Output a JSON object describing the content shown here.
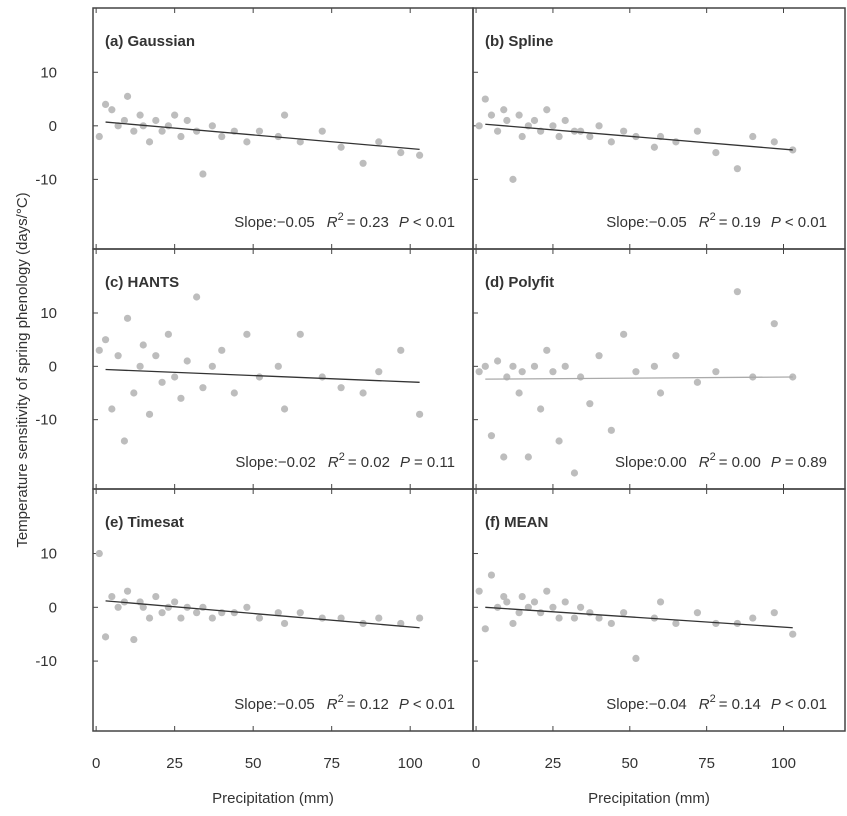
{
  "chart_data": [
    {
      "type": "scatter",
      "title": "(a) Gaussian",
      "ylabel": "Temperature sensitivity of spring phenology (days/°C)",
      "annotation": [
        "Slope:−0.05",
        "R",
        "2",
        "= 0.23",
        "P",
        "< 0.01"
      ],
      "x": [
        1,
        3,
        5,
        7,
        9,
        10,
        12,
        14,
        15,
        17,
        19,
        21,
        23,
        25,
        27,
        29,
        32,
        34,
        37,
        40,
        44,
        48,
        52,
        58,
        60,
        65,
        72,
        78,
        85,
        90,
        97,
        103
      ],
      "y": [
        -2,
        4,
        3,
        0,
        1,
        5.5,
        -1,
        2,
        0,
        -3,
        1,
        -1,
        0,
        2,
        -2,
        1,
        -1,
        -9,
        0,
        -2,
        -1,
        -3,
        -1,
        -2,
        2,
        -3,
        -1,
        -4,
        -7,
        -3,
        -5,
        -5.5
      ],
      "fit_x": [
        3,
        103
      ],
      "fit_y": [
        0.7,
        -4.4
      ],
      "color": "#bdbdbd",
      "fit_color": "#333333",
      "xlim": [
        -1,
        120
      ],
      "ylim": [
        -23,
        22
      ],
      "xticks": [
        0,
        25,
        50,
        75,
        100
      ],
      "yticks": [
        -10,
        0,
        10
      ]
    },
    {
      "type": "scatter",
      "title": "(b) Spline",
      "annotation": [
        "Slope:−0.05",
        "R",
        "2",
        "= 0.19",
        "P",
        "< 0.01"
      ],
      "x": [
        1,
        3,
        5,
        7,
        9,
        10,
        12,
        14,
        15,
        17,
        19,
        21,
        23,
        25,
        27,
        29,
        32,
        34,
        37,
        40,
        44,
        48,
        52,
        58,
        60,
        65,
        72,
        78,
        85,
        90,
        97,
        103
      ],
      "y": [
        0,
        5,
        2,
        -1,
        3,
        1,
        -10,
        2,
        -2,
        0,
        1,
        -1,
        3,
        0,
        -2,
        1,
        -1,
        -1,
        -2,
        0,
        -3,
        -1,
        -2,
        -4,
        -2,
        -3,
        -1,
        -5,
        -8,
        -2,
        -3,
        -4.5
      ],
      "fit_x": [
        3,
        103
      ],
      "fit_y": [
        0.3,
        -4.5
      ],
      "color": "#bdbdbd",
      "fit_color": "#333333",
      "xlim": [
        -1,
        120
      ],
      "ylim": [
        -23,
        22
      ],
      "xticks": [
        0,
        25,
        50,
        75,
        100
      ],
      "yticks": [
        -10,
        0,
        10
      ]
    },
    {
      "type": "scatter",
      "title": "(c) HANTS",
      "annotation": [
        "Slope:−0.02",
        "R",
        "2",
        "= 0.02",
        "P",
        "= 0.11"
      ],
      "x": [
        1,
        3,
        5,
        7,
        9,
        10,
        12,
        14,
        15,
        17,
        19,
        21,
        23,
        25,
        27,
        29,
        32,
        34,
        37,
        40,
        44,
        48,
        52,
        58,
        60,
        65,
        72,
        78,
        85,
        90,
        97,
        103
      ],
      "y": [
        3,
        5,
        -8,
        2,
        -14,
        9,
        -5,
        0,
        4,
        -9,
        2,
        -3,
        6,
        -2,
        -6,
        1,
        13,
        -4,
        0,
        3,
        -5,
        6,
        -2,
        0,
        -8,
        6,
        -2,
        -4,
        -5,
        -1,
        3,
        -9
      ],
      "fit_x": [
        3,
        103
      ],
      "fit_y": [
        -0.6,
        -3
      ],
      "color": "#bdbdbd",
      "fit_color": "#333333",
      "xlim": [
        -1,
        120
      ],
      "ylim": [
        -23,
        22
      ],
      "xticks": [
        0,
        25,
        50,
        75,
        100
      ],
      "yticks": [
        -10,
        0,
        10
      ]
    },
    {
      "type": "scatter",
      "title": "(d) Polyfit",
      "annotation": [
        "Slope:0.00",
        "R",
        "2",
        "= 0.00",
        "P",
        "= 0.89"
      ],
      "x": [
        1,
        3,
        5,
        7,
        9,
        10,
        12,
        14,
        15,
        17,
        19,
        21,
        23,
        25,
        27,
        29,
        32,
        34,
        37,
        40,
        44,
        48,
        52,
        58,
        60,
        65,
        72,
        78,
        85,
        90,
        97,
        103
      ],
      "y": [
        -1,
        0,
        -13,
        1,
        -17,
        -2,
        0,
        -5,
        -1,
        -17,
        0,
        -8,
        3,
        -1,
        -14,
        0,
        -20,
        -2,
        -7,
        2,
        -12,
        6,
        -1,
        0,
        -5,
        2,
        -3,
        -1,
        14,
        -2,
        8,
        -2
      ],
      "fit_x": [
        3,
        103
      ],
      "fit_y": [
        -2.4,
        -2.0
      ],
      "color": "#bdbdbd",
      "fit_color": "#aaaaaa",
      "xlim": [
        -1,
        120
      ],
      "ylim": [
        -23,
        22
      ],
      "xticks": [
        0,
        25,
        50,
        75,
        100
      ],
      "yticks": [
        -10,
        0,
        10
      ]
    },
    {
      "type": "scatter",
      "title": "(e) Timesat",
      "xlabel": "Precipitation (mm)",
      "annotation": [
        "Slope:−0.05",
        "R",
        "2",
        "= 0.12",
        "P",
        "< 0.01"
      ],
      "x": [
        1,
        3,
        5,
        7,
        9,
        10,
        12,
        14,
        15,
        17,
        19,
        21,
        23,
        25,
        27,
        29,
        32,
        34,
        37,
        40,
        44,
        48,
        52,
        58,
        60,
        65,
        72,
        78,
        85,
        90,
        97,
        103
      ],
      "y": [
        10,
        -5.5,
        2,
        0,
        1,
        3,
        -6,
        1,
        0,
        -2,
        2,
        -1,
        0,
        1,
        -2,
        0,
        -1,
        0,
        -2,
        -1,
        -1,
        0,
        -2,
        -1,
        -3,
        -1,
        -2,
        -2,
        -3,
        -2,
        -3,
        -2
      ],
      "fit_x": [
        3,
        103
      ],
      "fit_y": [
        1.2,
        -3.8
      ],
      "color": "#bdbdbd",
      "fit_color": "#333333",
      "xlim": [
        -1,
        120
      ],
      "ylim": [
        -23,
        22
      ],
      "xticks": [
        0,
        25,
        50,
        75,
        100
      ],
      "yticks": [
        -10,
        0,
        10
      ]
    },
    {
      "type": "scatter",
      "title": "(f) MEAN",
      "xlabel": "Precipitation (mm)",
      "annotation": [
        "Slope:−0.04",
        "R",
        "2",
        "= 0.14",
        "P",
        "< 0.01"
      ],
      "x": [
        1,
        3,
        5,
        7,
        9,
        10,
        12,
        14,
        15,
        17,
        19,
        21,
        23,
        25,
        27,
        29,
        32,
        34,
        37,
        40,
        44,
        48,
        52,
        58,
        60,
        65,
        72,
        78,
        85,
        90,
        97,
        103
      ],
      "y": [
        3,
        -4,
        6,
        0,
        2,
        1,
        -3,
        -1,
        2,
        0,
        1,
        -1,
        3,
        0,
        -2,
        1,
        -2,
        0,
        -1,
        -2,
        -3,
        -1,
        -9.5,
        -2,
        1,
        -3,
        -1,
        -3,
        -3,
        -2,
        -1,
        -5
      ],
      "fit_x": [
        3,
        103
      ],
      "fit_y": [
        0,
        -3.8
      ],
      "color": "#bdbdbd",
      "fit_color": "#333333",
      "xlim": [
        -1,
        120
      ],
      "ylim": [
        -23,
        22
      ],
      "xticks": [
        0,
        25,
        50,
        75,
        100
      ],
      "yticks": [
        -10,
        0,
        10
      ]
    }
  ]
}
